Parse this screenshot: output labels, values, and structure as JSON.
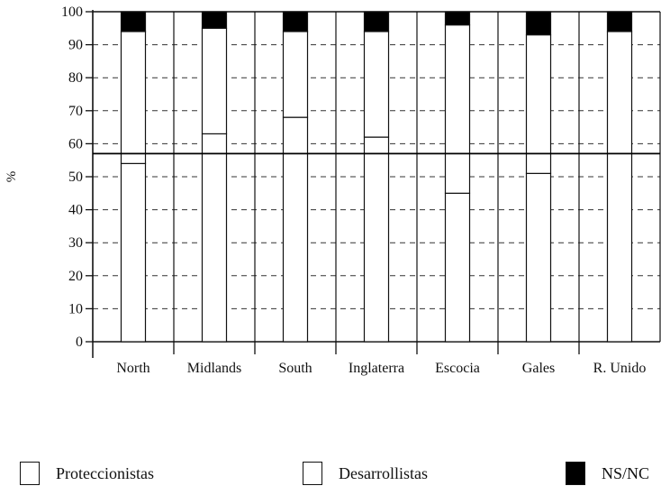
{
  "chart_data": {
    "type": "bar",
    "stacked": true,
    "ylabel": "%",
    "ylim": [
      0,
      100
    ],
    "yticks": [
      0,
      10,
      20,
      30,
      40,
      50,
      60,
      70,
      80,
      90,
      100
    ],
    "grid": "dashed horizontal",
    "reference_line": 57,
    "categories": [
      "North",
      "Midlands",
      "South",
      "Inglaterra",
      "Escocia",
      "Gales",
      "R. Unido"
    ],
    "series": [
      {
        "name": "Proteccionistas",
        "color": "#ffffff",
        "values": [
          54,
          63,
          68,
          62,
          45,
          51,
          57
        ]
      },
      {
        "name": "Desarrollistas",
        "color": "#ffffff",
        "values": [
          40,
          32,
          26,
          32,
          51,
          42,
          37
        ]
      },
      {
        "name": "NS/NC",
        "color": "#000000",
        "values": [
          6,
          5,
          6,
          6,
          4,
          7,
          6
        ]
      }
    ]
  },
  "legend": {
    "items": [
      {
        "label": "Proteccionistas",
        "color": "#ffffff"
      },
      {
        "label": "Desarrollistas",
        "color": "#ffffff"
      },
      {
        "label": "NS/NC",
        "color": "#000000"
      }
    ]
  }
}
